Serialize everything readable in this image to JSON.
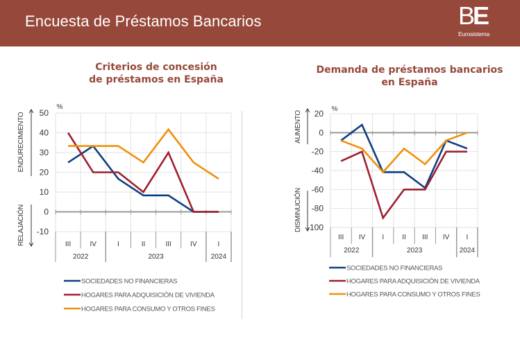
{
  "header": {
    "title": "Encuesta de Préstamos Bancarios",
    "logo_main_b": "B",
    "logo_main_e": "E",
    "logo_sub": "Eurosistema",
    "background_color": "#96483a"
  },
  "colors": {
    "series": [
      "#0d3f7f",
      "#9e1f2f",
      "#f0900b"
    ],
    "title": "#96483a"
  },
  "chart_data": [
    {
      "type": "line",
      "title": "Criterios de concesión\nde préstamos en España",
      "title_lines": [
        "Criterios de concesión",
        "de préstamos en España"
      ],
      "unit_label": "%",
      "ylim": [
        -10,
        50
      ],
      "yticks": [
        50,
        40,
        30,
        20,
        10,
        0,
        -10
      ],
      "up_label": "ENDURECIMIENTO",
      "down_label": "RELAJACIÓN",
      "categories": [
        "III",
        "IV",
        "I",
        "II",
        "III",
        "IV",
        "I"
      ],
      "years": [
        {
          "label": "2022",
          "span": 2
        },
        {
          "label": "2023",
          "span": 4
        },
        {
          "label": "2024",
          "span": 1
        }
      ],
      "grid": true,
      "legend_position": "bottom",
      "series": [
        {
          "name": "SOCIEDADES NO FINANCIERAS",
          "values": [
            25,
            33.3,
            16.7,
            8.3,
            8.3,
            0,
            0
          ]
        },
        {
          "name": "HOGARES PARA ADQUISICIÓN DE VIVIENDA",
          "values": [
            40,
            20,
            20,
            10,
            30,
            0,
            0
          ]
        },
        {
          "name": "HOGARES PARA CONSUMO Y OTROS FINES",
          "values": [
            33.3,
            33.3,
            33.3,
            25,
            41.7,
            25,
            16.7
          ]
        }
      ]
    },
    {
      "type": "line",
      "title": "Demanda de préstamos bancarios\nen España",
      "title_lines": [
        "Demanda de préstamos bancarios",
        "en España"
      ],
      "unit_label": "%",
      "ylim": [
        -100,
        20
      ],
      "yticks": [
        20,
        0,
        -20,
        -40,
        -60,
        -80,
        -100
      ],
      "up_label": "AUMENTO",
      "down_label": "DISMINUCIÓN",
      "categories": [
        "III",
        "IV",
        "I",
        "II",
        "III",
        "IV",
        "I"
      ],
      "years": [
        {
          "label": "2022",
          "span": 2
        },
        {
          "label": "2023",
          "span": 4
        },
        {
          "label": "2024",
          "span": 1
        }
      ],
      "grid": true,
      "legend_position": "bottom",
      "series": [
        {
          "name": "SOCIEDADES NO FINANCIERAS",
          "values": [
            -8.3,
            8.3,
            -41.7,
            -41.7,
            -58.3,
            -8.3,
            -16.7
          ]
        },
        {
          "name": "HOGARES PARA ADQUISICIÓN DE VIVIENDA",
          "values": [
            -30,
            -20,
            -90,
            -60,
            -60,
            -20,
            -20
          ]
        },
        {
          "name": "HOGARES PARA CONSUMO Y OTROS FINES",
          "values": [
            -8.3,
            -16.7,
            -41.7,
            -16.7,
            -33.3,
            -8.3,
            0
          ]
        }
      ]
    }
  ]
}
